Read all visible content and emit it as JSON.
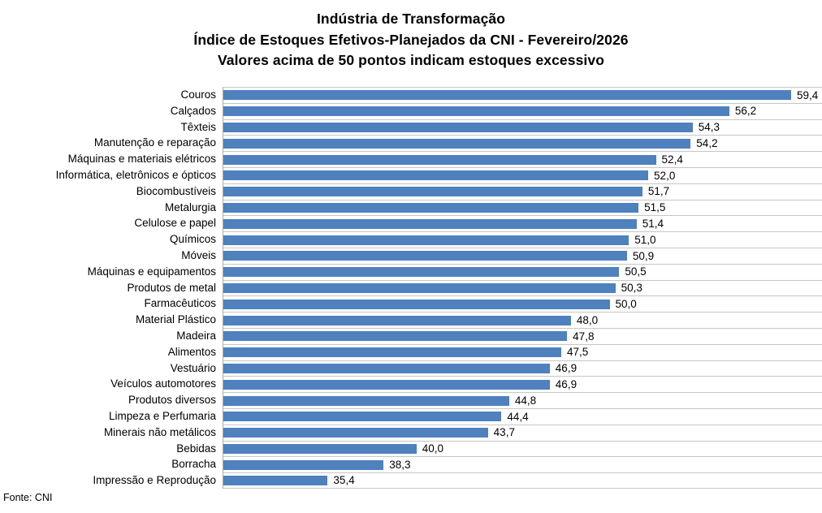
{
  "chart_data": {
    "type": "bar",
    "orientation": "horizontal",
    "title": "Indústria de Transformação",
    "subtitle": "Índice de Estoques Efetivos-Planejados da CNI - Fevereiro/2026",
    "subtitle2": "Valores acima de 50 pontos indicam estoques excessivo",
    "categories": [
      "Couros",
      "Calçados",
      "Têxteis",
      "Manutenção e reparação",
      "Máquinas e materiais elétricos",
      "Informática, eletrônicos e ópticos",
      "Biocombustíveis",
      "Metalurgia",
      "Celulose e papel",
      "Químicos",
      "Móveis",
      "Máquinas e equipamentos",
      "Produtos de metal",
      "Farmacêuticos",
      "Material Plástico",
      "Madeira",
      "Alimentos",
      "Vestuário",
      "Veículos automotores",
      "Produtos diversos",
      "Limpeza e Perfumaria",
      "Minerais não metálicos",
      "Bebidas",
      "Borracha",
      "Impressão e Reprodução"
    ],
    "values": [
      59.4,
      56.2,
      54.3,
      54.2,
      52.4,
      52.0,
      51.7,
      51.5,
      51.4,
      51.0,
      50.9,
      50.5,
      50.3,
      50.0,
      48.0,
      47.8,
      47.5,
      46.9,
      46.9,
      44.8,
      44.4,
      43.7,
      40.0,
      38.3,
      35.4
    ],
    "value_labels": [
      "59,4",
      "56,2",
      "54,3",
      "54,2",
      "52,4",
      "52,0",
      "51,7",
      "51,5",
      "51,4",
      "51,0",
      "50,9",
      "50,5",
      "50,3",
      "50,0",
      "48,0",
      "47,8",
      "47,5",
      "46,9",
      "46,9",
      "44,8",
      "44,4",
      "43,7",
      "40,0",
      "38,3",
      "35,4"
    ],
    "xlabel": "",
    "ylabel": "",
    "xlim": [
      30,
      61
    ],
    "grid": "horizontal category separator lines only, no x-axis ticks or labels",
    "legend": "none",
    "bar_color": "#4E81BD",
    "gridline_color": "#C6C6C6",
    "axis_line_color": "#A9A9A9",
    "source": "Fonte: CNI"
  }
}
